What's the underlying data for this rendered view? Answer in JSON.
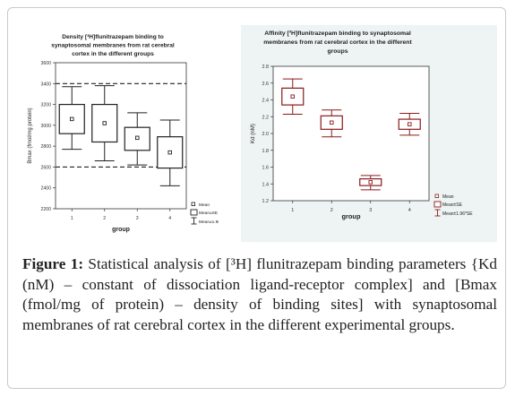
{
  "chart_data": [
    {
      "type": "box",
      "title_lines": [
        "Density [³H]flunitrazepam binding to",
        "synaptosomal membranes from rat cerebral",
        "cortex in the different groups"
      ],
      "xlabel": "group",
      "ylabel": "Bmax (fmol/mg protein)",
      "categories": [
        "1",
        "2",
        "3",
        "4"
      ],
      "y_ticks": [
        "2200",
        "2400",
        "2600",
        "2800",
        "3000",
        "3200",
        "3400",
        "3600"
      ],
      "ylim": [
        2200,
        3600
      ],
      "reference_lines": [
        3400,
        2600
      ],
      "boxes": [
        {
          "group": "1",
          "mean": 3060,
          "se_low": 2920,
          "se_high": 3200,
          "ci_low": 2770,
          "ci_high": 3370
        },
        {
          "group": "2",
          "mean": 3020,
          "se_low": 2840,
          "se_high": 3200,
          "ci_low": 2660,
          "ci_high": 3380
        },
        {
          "group": "3",
          "mean": 2880,
          "se_low": 2760,
          "se_high": 2980,
          "ci_low": 2620,
          "ci_high": 3120
        },
        {
          "group": "4",
          "mean": 2740,
          "se_low": 2590,
          "se_high": 2890,
          "ci_low": 2420,
          "ci_high": 3050
        }
      ],
      "legend": [
        "Mean",
        "Mean±SE",
        "Mean±1.96*SE"
      ],
      "legend_position": "bottom-right",
      "box_color": "#222222"
    },
    {
      "type": "box",
      "title_lines": [
        "Affinity [³H]flunitrazepam binding to synaptosomal",
        "membranes from rat cerebral cortex in the different",
        "groups"
      ],
      "xlabel": "group",
      "ylabel": "Kd (nM)",
      "categories": [
        "1",
        "2",
        "3",
        "4"
      ],
      "y_ticks": [
        "1.2",
        "1.4",
        "1.6",
        "1.8",
        "2.0",
        "2.2",
        "2.4",
        "2.6",
        "2.8"
      ],
      "ylim": [
        1.2,
        2.8
      ],
      "boxes": [
        {
          "group": "1",
          "mean": 2.44,
          "se_low": 2.34,
          "se_high": 2.54,
          "ci_low": 2.23,
          "ci_high": 2.65
        },
        {
          "group": "2",
          "mean": 2.13,
          "se_low": 2.05,
          "se_high": 2.21,
          "ci_low": 1.96,
          "ci_high": 2.28
        },
        {
          "group": "3",
          "mean": 1.42,
          "se_low": 1.38,
          "se_high": 1.46,
          "ci_low": 1.33,
          "ci_high": 1.5
        },
        {
          "group": "4",
          "mean": 2.11,
          "se_low": 2.05,
          "se_high": 2.17,
          "ci_low": 1.98,
          "ci_high": 2.24
        }
      ],
      "legend": [
        "Mean",
        "Mean±SE",
        "Mean±1.96*SE"
      ],
      "legend_position": "bottom-right",
      "box_color": "#8b1a1a",
      "background": "#eef3f4"
    }
  ],
  "caption": {
    "label": "Figure 1:",
    "text": "Statistical analysis of [³H] flunitrazepam binding parameters {Kd (nM) – constant of dissociation ligand-receptor complex] and [Bmax (fmol/mg of protein) – density of binding sites] with synaptosomal membranes of rat cerebral cortex in the different experimental groups."
  }
}
